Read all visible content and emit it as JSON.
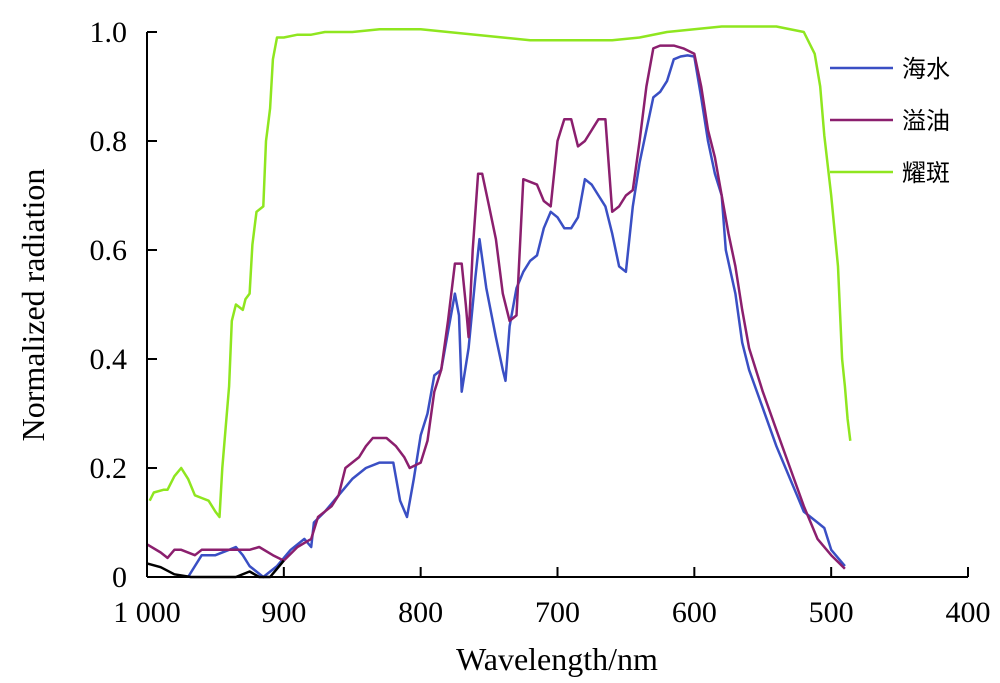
{
  "chart_data": {
    "type": "line",
    "xlabel": "Wavelength/nm",
    "ylabel": "Normalized radiation",
    "xlim": [
      1000,
      400
    ],
    "ylim": [
      0,
      1.0
    ],
    "x_ticks": [
      1000,
      900,
      800,
      700,
      600,
      500,
      400
    ],
    "x_tick_labels": [
      "1 000",
      "900",
      "800",
      "700",
      "600",
      "500",
      "400"
    ],
    "y_ticks": [
      0,
      0.2,
      0.4,
      0.6,
      0.8,
      1.0
    ],
    "y_tick_labels": [
      "0",
      "0.2",
      "0.4",
      "0.6",
      "0.8",
      "1.0"
    ],
    "legend_position": "top-right",
    "series": [
      {
        "name": "海水",
        "color": "#3a4fc4",
        "points": [
          [
            970,
            0.0
          ],
          [
            960,
            0.04
          ],
          [
            950,
            0.04
          ],
          [
            940,
            0.05
          ],
          [
            935,
            0.055
          ],
          [
            930,
            0.04
          ],
          [
            925,
            0.02
          ],
          [
            915,
            0.0
          ],
          [
            905,
            0.02
          ],
          [
            895,
            0.05
          ],
          [
            885,
            0.07
          ],
          [
            880,
            0.055
          ],
          [
            878,
            0.1
          ],
          [
            870,
            0.12
          ],
          [
            860,
            0.15
          ],
          [
            850,
            0.18
          ],
          [
            840,
            0.2
          ],
          [
            830,
            0.21
          ],
          [
            820,
            0.21
          ],
          [
            815,
            0.14
          ],
          [
            810,
            0.11
          ],
          [
            805,
            0.18
          ],
          [
            800,
            0.26
          ],
          [
            795,
            0.3
          ],
          [
            790,
            0.37
          ],
          [
            785,
            0.38
          ],
          [
            780,
            0.45
          ],
          [
            775,
            0.52
          ],
          [
            772,
            0.48
          ],
          [
            770,
            0.34
          ],
          [
            765,
            0.42
          ],
          [
            760,
            0.55
          ],
          [
            757,
            0.62
          ],
          [
            752,
            0.53
          ],
          [
            745,
            0.44
          ],
          [
            740,
            0.38
          ],
          [
            738,
            0.36
          ],
          [
            735,
            0.46
          ],
          [
            730,
            0.53
          ],
          [
            725,
            0.56
          ],
          [
            720,
            0.58
          ],
          [
            715,
            0.59
          ],
          [
            710,
            0.64
          ],
          [
            705,
            0.67
          ],
          [
            700,
            0.66
          ],
          [
            695,
            0.64
          ],
          [
            690,
            0.64
          ],
          [
            685,
            0.66
          ],
          [
            680,
            0.73
          ],
          [
            675,
            0.72
          ],
          [
            670,
            0.7
          ],
          [
            665,
            0.68
          ],
          [
            660,
            0.63
          ],
          [
            655,
            0.57
          ],
          [
            650,
            0.56
          ],
          [
            645,
            0.68
          ],
          [
            640,
            0.76
          ],
          [
            635,
            0.82
          ],
          [
            630,
            0.88
          ],
          [
            625,
            0.89
          ],
          [
            620,
            0.91
          ],
          [
            615,
            0.95
          ],
          [
            610,
            0.955
          ],
          [
            605,
            0.957
          ],
          [
            600,
            0.955
          ],
          [
            595,
            0.88
          ],
          [
            590,
            0.8
          ],
          [
            585,
            0.74
          ],
          [
            580,
            0.7
          ],
          [
            577,
            0.6
          ],
          [
            570,
            0.52
          ],
          [
            565,
            0.43
          ],
          [
            560,
            0.38
          ],
          [
            550,
            0.31
          ],
          [
            540,
            0.24
          ],
          [
            530,
            0.18
          ],
          [
            525,
            0.15
          ],
          [
            520,
            0.12
          ],
          [
            510,
            0.1
          ],
          [
            505,
            0.09
          ],
          [
            500,
            0.05
          ],
          [
            490,
            0.02
          ]
        ]
      },
      {
        "name": "溢油",
        "color": "#8b1f6e",
        "points": [
          [
            1000,
            0.06
          ],
          [
            990,
            0.045
          ],
          [
            985,
            0.035
          ],
          [
            980,
            0.05
          ],
          [
            975,
            0.05
          ],
          [
            965,
            0.04
          ],
          [
            960,
            0.05
          ],
          [
            945,
            0.05
          ],
          [
            935,
            0.05
          ],
          [
            925,
            0.05
          ],
          [
            918,
            0.055
          ],
          [
            908,
            0.04
          ],
          [
            900,
            0.03
          ],
          [
            890,
            0.055
          ],
          [
            880,
            0.07
          ],
          [
            875,
            0.11
          ],
          [
            865,
            0.13
          ],
          [
            860,
            0.15
          ],
          [
            855,
            0.2
          ],
          [
            845,
            0.22
          ],
          [
            840,
            0.24
          ],
          [
            835,
            0.255
          ],
          [
            825,
            0.255
          ],
          [
            818,
            0.24
          ],
          [
            812,
            0.22
          ],
          [
            808,
            0.2
          ],
          [
            800,
            0.21
          ],
          [
            795,
            0.25
          ],
          [
            790,
            0.34
          ],
          [
            785,
            0.38
          ],
          [
            780,
            0.47
          ],
          [
            775,
            0.575
          ],
          [
            770,
            0.575
          ],
          [
            767,
            0.5
          ],
          [
            765,
            0.44
          ],
          [
            762,
            0.6
          ],
          [
            758,
            0.74
          ],
          [
            755,
            0.74
          ],
          [
            750,
            0.68
          ],
          [
            745,
            0.62
          ],
          [
            740,
            0.52
          ],
          [
            735,
            0.47
          ],
          [
            730,
            0.48
          ],
          [
            725,
            0.73
          ],
          [
            715,
            0.72
          ],
          [
            710,
            0.69
          ],
          [
            705,
            0.68
          ],
          [
            700,
            0.8
          ],
          [
            695,
            0.84
          ],
          [
            690,
            0.84
          ],
          [
            685,
            0.79
          ],
          [
            680,
            0.8
          ],
          [
            675,
            0.82
          ],
          [
            670,
            0.84
          ],
          [
            665,
            0.84
          ],
          [
            660,
            0.67
          ],
          [
            655,
            0.68
          ],
          [
            650,
            0.7
          ],
          [
            645,
            0.71
          ],
          [
            640,
            0.8
          ],
          [
            635,
            0.9
          ],
          [
            630,
            0.97
          ],
          [
            625,
            0.975
          ],
          [
            615,
            0.975
          ],
          [
            608,
            0.97
          ],
          [
            600,
            0.96
          ],
          [
            595,
            0.9
          ],
          [
            590,
            0.82
          ],
          [
            585,
            0.77
          ],
          [
            580,
            0.7
          ],
          [
            575,
            0.63
          ],
          [
            570,
            0.57
          ],
          [
            565,
            0.49
          ],
          [
            560,
            0.42
          ],
          [
            550,
            0.34
          ],
          [
            540,
            0.27
          ],
          [
            530,
            0.2
          ],
          [
            520,
            0.13
          ],
          [
            510,
            0.07
          ],
          [
            500,
            0.04
          ],
          [
            490,
            0.015
          ]
        ]
      },
      {
        "name": "耀斑",
        "color": "#8fe61f",
        "points": [
          [
            998,
            0.14
          ],
          [
            995,
            0.155
          ],
          [
            988,
            0.16
          ],
          [
            985,
            0.16
          ],
          [
            980,
            0.185
          ],
          [
            975,
            0.2
          ],
          [
            970,
            0.18
          ],
          [
            965,
            0.15
          ],
          [
            960,
            0.145
          ],
          [
            955,
            0.14
          ],
          [
            950,
            0.12
          ],
          [
            947,
            0.11
          ],
          [
            945,
            0.2
          ],
          [
            940,
            0.35
          ],
          [
            938,
            0.47
          ],
          [
            935,
            0.5
          ],
          [
            930,
            0.49
          ],
          [
            928,
            0.51
          ],
          [
            925,
            0.52
          ],
          [
            923,
            0.61
          ],
          [
            921,
            0.65
          ],
          [
            920,
            0.67
          ],
          [
            915,
            0.68
          ],
          [
            913,
            0.8
          ],
          [
            912,
            0.82
          ],
          [
            910,
            0.86
          ],
          [
            908,
            0.95
          ],
          [
            905,
            0.99
          ],
          [
            900,
            0.99
          ],
          [
            890,
            0.995
          ],
          [
            880,
            0.995
          ],
          [
            870,
            1.0
          ],
          [
            850,
            1.0
          ],
          [
            830,
            1.005
          ],
          [
            800,
            1.005
          ],
          [
            780,
            1.0
          ],
          [
            760,
            0.995
          ],
          [
            740,
            0.99
          ],
          [
            720,
            0.985
          ],
          [
            700,
            0.985
          ],
          [
            680,
            0.985
          ],
          [
            660,
            0.985
          ],
          [
            640,
            0.99
          ],
          [
            620,
            1.0
          ],
          [
            600,
            1.005
          ],
          [
            580,
            1.01
          ],
          [
            560,
            1.01
          ],
          [
            540,
            1.01
          ],
          [
            520,
            1.0
          ],
          [
            512,
            0.96
          ],
          [
            508,
            0.9
          ],
          [
            505,
            0.81
          ],
          [
            500,
            0.7
          ],
          [
            495,
            0.57
          ],
          [
            492,
            0.4
          ],
          [
            490,
            0.35
          ],
          [
            488,
            0.29
          ],
          [
            486,
            0.25
          ]
        ]
      },
      {
        "name": "",
        "color": "#000000",
        "points": [
          [
            1000,
            0.025
          ],
          [
            990,
            0.018
          ],
          [
            980,
            0.005
          ],
          [
            968,
            0.0
          ],
          [
            958,
            0.0
          ],
          [
            935,
            0.0
          ],
          [
            925,
            0.01
          ],
          [
            918,
            0.0
          ],
          [
            910,
            0.0
          ],
          [
            905,
            0.015
          ],
          [
            900,
            0.03
          ]
        ]
      }
    ]
  }
}
